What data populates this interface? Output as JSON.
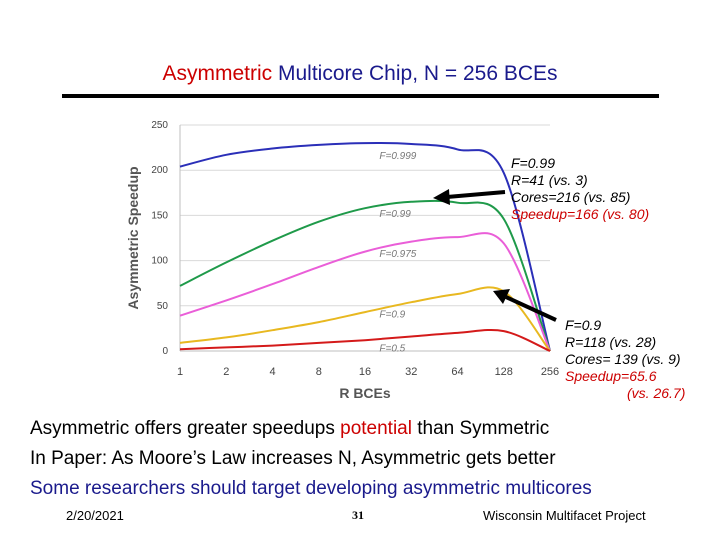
{
  "slide": {
    "title_highlight": "Asymmetric",
    "title_rest": " Multicore Chip, N = 256 BCEs",
    "annotations": {
      "upper": {
        "f": "F=0.99",
        "r": "R=41 (vs. 3)",
        "cores": "Cores=216 (vs. 85)",
        "speedup": "Speedup=166 (vs. 80)"
      },
      "lower": {
        "f": "F=0.9",
        "r": "R=118 (vs. 28)",
        "cores": "Cores= 139 (vs. 9)",
        "speedup": "Speedup=65.6",
        "speedup2": "(vs. 26.7)"
      }
    },
    "bullets": {
      "b1_pre": "Asymmetric offers greater speedups ",
      "b1_red": "potential",
      "b1_post": " than Symmetric",
      "b2": "In Paper: As Moore’s Law increases N, Asymmetric gets better",
      "b3": "Some researchers should target developing asymmetric multicores"
    },
    "footer": {
      "date": "2/20/2021",
      "page": "31",
      "project": "Wisconsin Multifacet Project"
    }
  },
  "chart_data": {
    "type": "line",
    "xlabel": "R BCEs",
    "ylabel": "Asymmetric Speedup",
    "x_scale": "log2",
    "x": [
      1,
      2,
      4,
      8,
      16,
      32,
      64,
      128,
      256
    ],
    "x_tick_labels": [
      "1",
      "2",
      "4",
      "8",
      "16",
      "32",
      "64",
      "128",
      "256"
    ],
    "y_ticks": [
      0,
      50,
      100,
      150,
      200,
      250
    ],
    "ylim": [
      0,
      250
    ],
    "series": [
      {
        "name": "F=0.999",
        "color": "#2b2fb8",
        "values": [
          204,
          217,
          224,
          228,
          230,
          229,
          223,
          197,
          0
        ]
      },
      {
        "name": "F=0.99",
        "color": "#1f9a4a",
        "values": [
          72,
          98,
          122,
          143,
          158,
          165,
          164,
          146,
          0
        ]
      },
      {
        "name": "F=0.975",
        "color": "#ea5ed8",
        "values": [
          39,
          56,
          74,
          93,
          110,
          121,
          126,
          119,
          0
        ]
      },
      {
        "name": "F=0.9",
        "color": "#e8b820",
        "values": [
          9,
          15,
          23,
          32,
          43,
          54,
          63,
          66,
          0
        ]
      },
      {
        "name": "F=0.5",
        "color": "#d41a1a",
        "values": [
          2,
          4,
          6,
          9,
          12,
          16,
          20,
          22,
          0
        ]
      }
    ]
  }
}
